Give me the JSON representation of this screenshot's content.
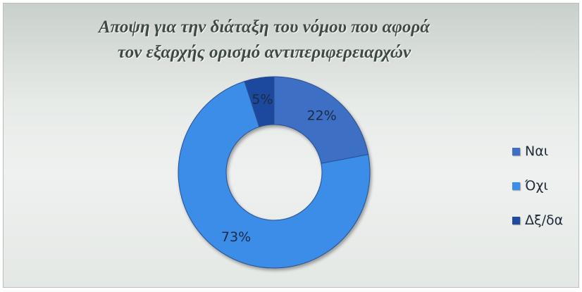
{
  "chart_data": {
    "type": "pie",
    "variant": "doughnut",
    "title_lines": [
      "Αποψη για την διάταξη του νόμου που αφορά",
      "τον εξαρχής ορισμό αντιπεριφερειαρχών"
    ],
    "categories": [
      "Ναι",
      "Όχι",
      "Δξ/δα"
    ],
    "values": [
      22,
      73,
      5
    ],
    "data_labels": [
      "22%",
      "73%",
      "5%"
    ],
    "colors": [
      "#3e6fc4",
      "#3a8de8",
      "#1f4a9e"
    ],
    "legend_position": "right"
  }
}
